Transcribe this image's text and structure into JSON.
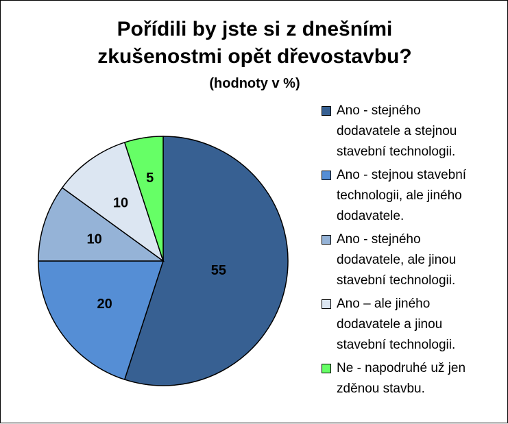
{
  "chart_data": {
    "type": "pie",
    "title": "Pořídili by jste si z dnešními\nzkušenostmi opět dřevostavbu?",
    "subtitle": "(hodnoty v %)",
    "slices": [
      {
        "label": "Ano - stejného\ndodavatele a stejnou\nstavební technologii.",
        "value": 55,
        "color": "#376092"
      },
      {
        "label": "Ano - stejnou stavební\ntechnologii, ale jiného\ndodavatele.",
        "value": 20,
        "color": "#558ED5"
      },
      {
        "label": "Ano - stejného\ndodavatele, ale jinou\nstavební technologii.",
        "value": 10,
        "color": "#95B3D7"
      },
      {
        "label": "Ano – ale jiného\ndodavatele a jinou\nstavební technologii.",
        "value": 10,
        "color": "#DCE6F2"
      },
      {
        "label": "Ne - napodruhé už jen\nzděnou stavbu.",
        "value": 5,
        "color": "#66FF66"
      }
    ],
    "legend_position": "right"
  }
}
